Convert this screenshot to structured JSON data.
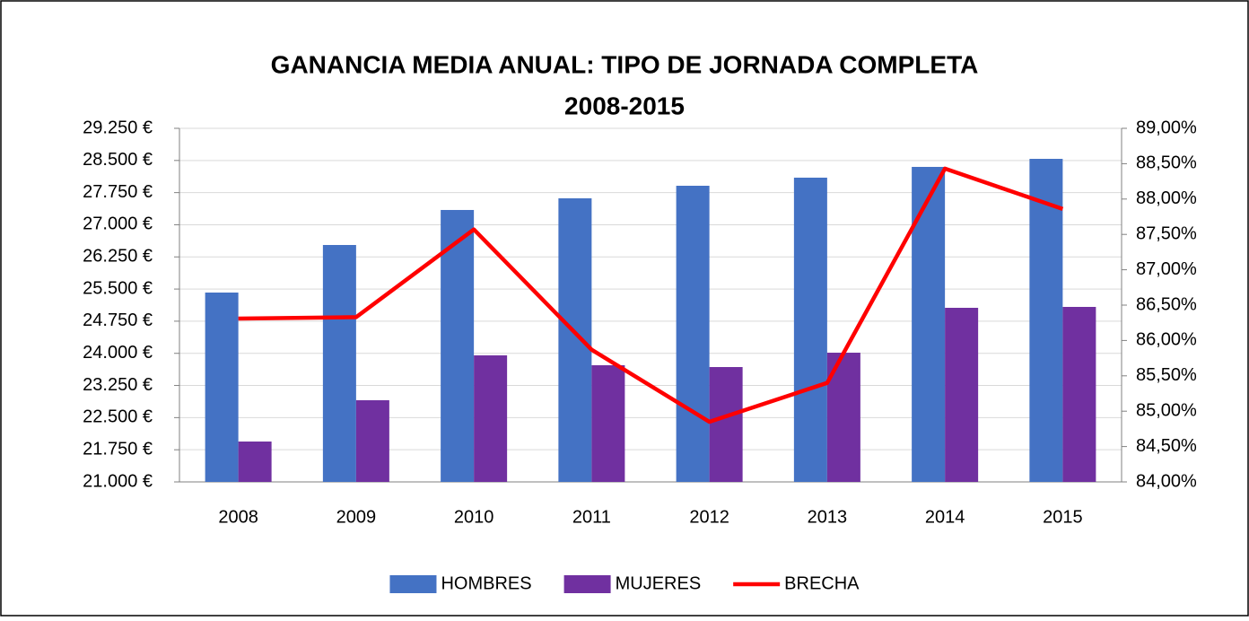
{
  "chart_data": {
    "type": "bar",
    "title": "GANANCIA MEDIA ANUAL: TIPO DE JORNADA COMPLETA",
    "subtitle": "2008-2015",
    "categories": [
      "2008",
      "2009",
      "2010",
      "2011",
      "2012",
      "2013",
      "2014",
      "2015"
    ],
    "series": [
      {
        "name": "HOMBRES",
        "type": "bar",
        "color": "#4472c4",
        "values": [
          25418,
          26528,
          27345,
          27617,
          27910,
          28099,
          28350,
          28538
        ]
      },
      {
        "name": "MUJERES",
        "type": "bar",
        "color": "#7030a0",
        "values": [
          21942,
          22906,
          23953,
          23722,
          23680,
          24015,
          25062,
          25083
        ]
      },
      {
        "name": "BRECHA",
        "type": "line",
        "axis": "y2",
        "color": "#ff0000",
        "values": [
          86.31,
          86.33,
          87.57,
          85.87,
          84.85,
          85.4,
          88.43,
          87.86
        ]
      }
    ],
    "ylim": [
      21000,
      29250
    ],
    "yticks": [
      {
        "value": 21000,
        "label": "21.000 €"
      },
      {
        "value": 21750,
        "label": "21.750 €"
      },
      {
        "value": 22500,
        "label": "22.500 €"
      },
      {
        "value": 23250,
        "label": "23.250 €"
      },
      {
        "value": 24000,
        "label": "24.000 €"
      },
      {
        "value": 24750,
        "label": "24.750 €"
      },
      {
        "value": 25500,
        "label": "25.500 €"
      },
      {
        "value": 26250,
        "label": "26.250 €"
      },
      {
        "value": 27000,
        "label": "27.000 €"
      },
      {
        "value": 27750,
        "label": "27.750 €"
      },
      {
        "value": 28500,
        "label": "28.500 €"
      },
      {
        "value": 29250,
        "label": "29.250 €"
      }
    ],
    "y2lim": [
      84,
      89
    ],
    "y2ticks": [
      {
        "value": 84,
        "label": "84,00%"
      },
      {
        "value": 84.5,
        "label": "84,50%"
      },
      {
        "value": 85,
        "label": "85,00%"
      },
      {
        "value": 85.5,
        "label": "85,50%"
      },
      {
        "value": 86,
        "label": "86,00%"
      },
      {
        "value": 86.5,
        "label": "86,50%"
      },
      {
        "value": 87,
        "label": "87,00%"
      },
      {
        "value": 87.5,
        "label": "87,50%"
      },
      {
        "value": 88,
        "label": "88,00%"
      },
      {
        "value": 88.5,
        "label": "88,50%"
      },
      {
        "value": 89,
        "label": "89,00%"
      }
    ],
    "grid": true,
    "legend": "bottom"
  }
}
